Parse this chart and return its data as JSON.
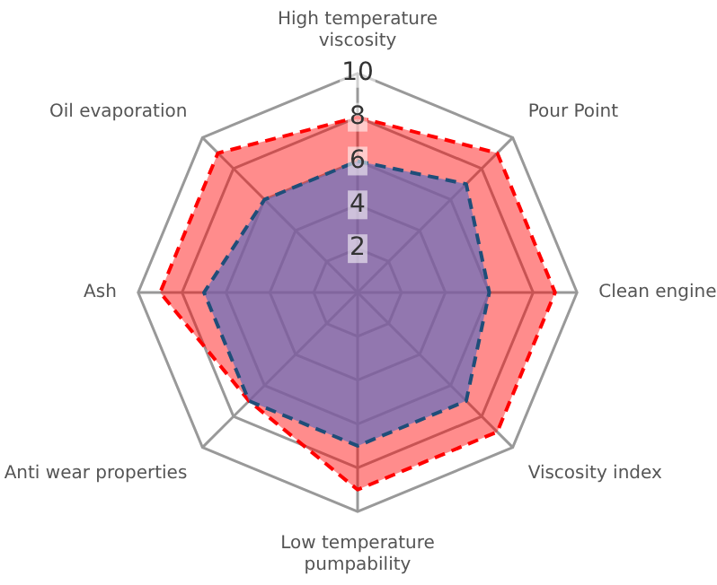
{
  "chart_data": {
    "type": "radar",
    "categories": [
      "High temperature viscosity",
      "Pour Point",
      "Clean engine",
      "Viscosity index",
      "Low temperature pumpability",
      "Anti wear properties",
      "Ash",
      "Oil evaporation"
    ],
    "series": [
      {
        "color": "#ff0000",
        "values": [
          8,
          9,
          9,
          9,
          9,
          7,
          9,
          9
        ]
      },
      {
        "color": "#1f4e79",
        "values": [
          6,
          7,
          6,
          7,
          7,
          7,
          7,
          6
        ]
      }
    ],
    "ylim": [
      0,
      10
    ],
    "yticks": [
      2,
      4,
      6,
      8,
      10
    ],
    "grid": true,
    "legend": false,
    "marker": "none",
    "line_style": "dashed"
  }
}
